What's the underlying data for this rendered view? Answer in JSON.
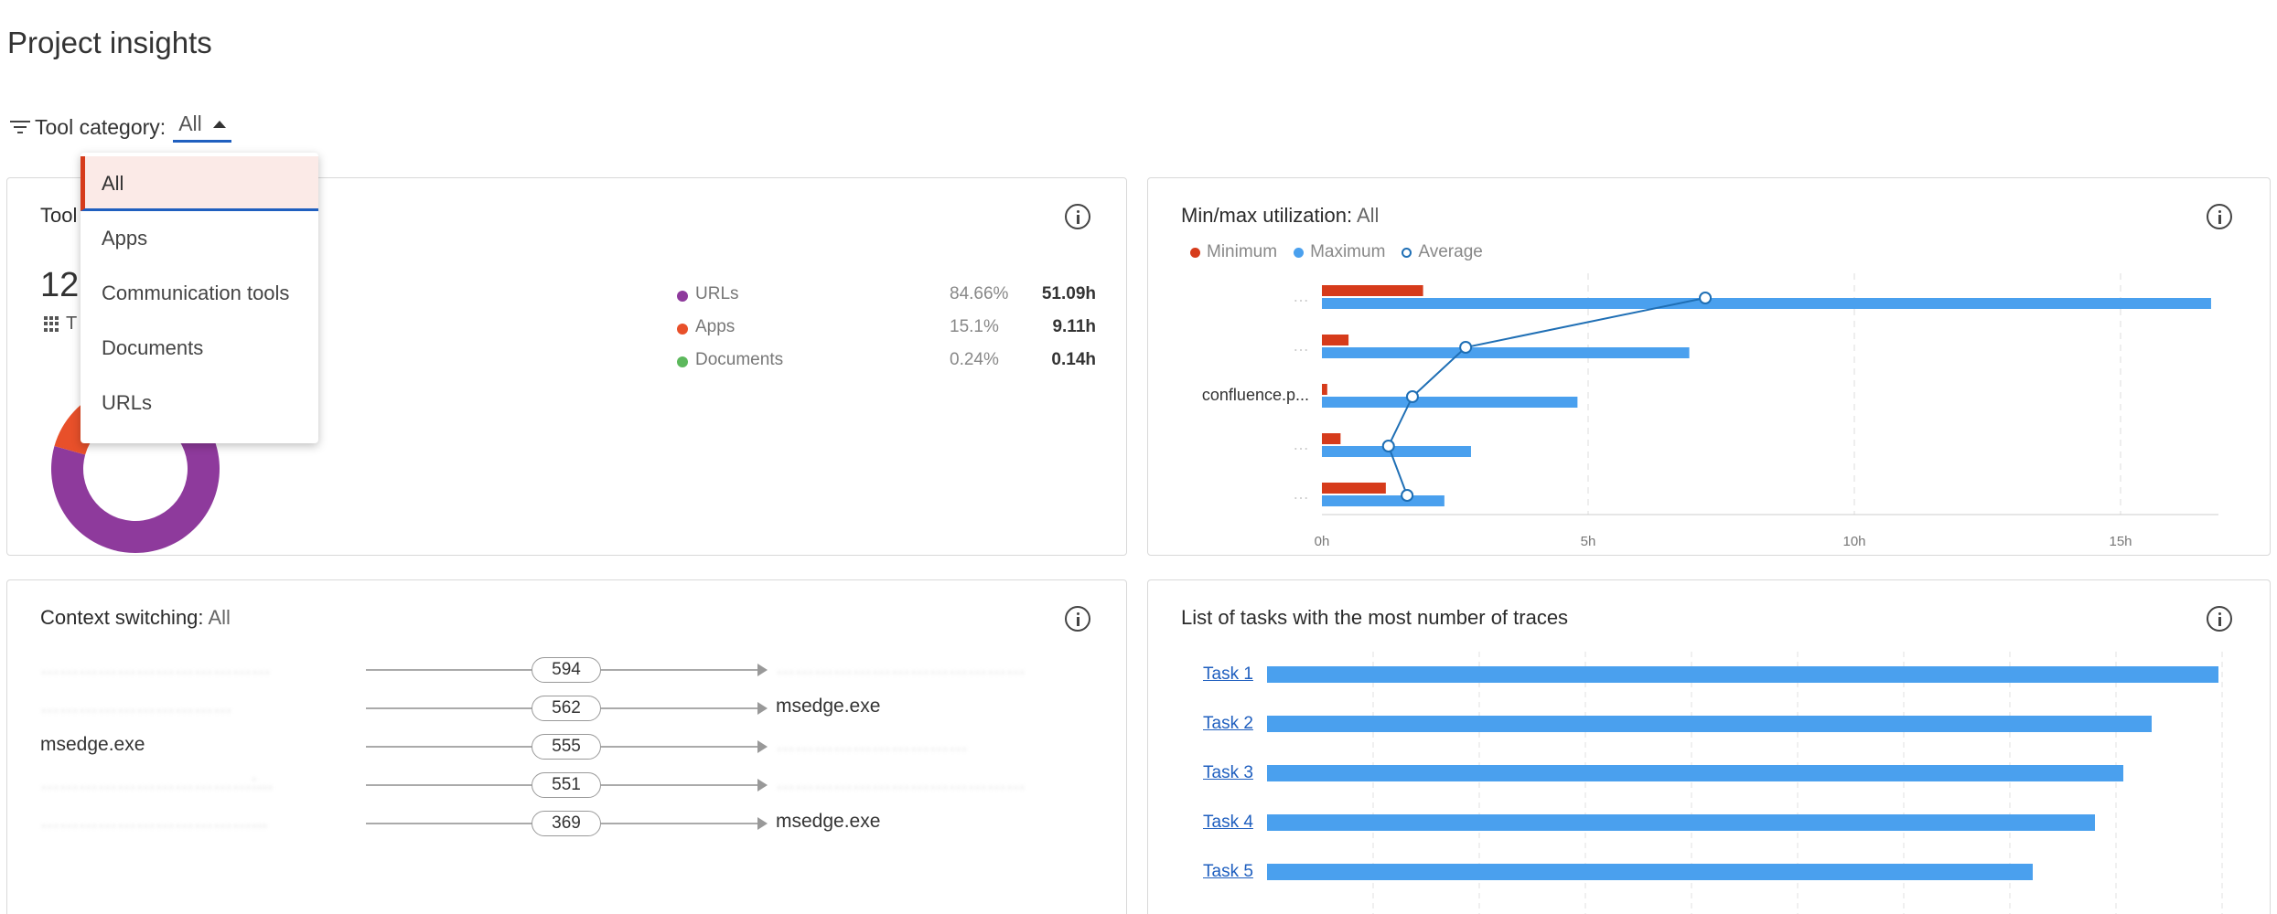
{
  "page": {
    "title": "Project insights"
  },
  "filter": {
    "label": "Tool category:",
    "value": "All"
  },
  "dropdown": {
    "options": [
      "All",
      "Apps",
      "Communication tools",
      "Documents",
      "URLs"
    ],
    "selected": "All"
  },
  "tools_card": {
    "title_partial": "Tool",
    "big_number_partial": "12",
    "grid_label_partial": "T",
    "legend": [
      {
        "label": "URLs",
        "percent": "84.66%",
        "hours": "51.09h",
        "color": "#8e3a9c"
      },
      {
        "label": "Apps",
        "percent": "15.1%",
        "hours": "9.11h",
        "color": "#e8502a"
      },
      {
        "label": "Documents",
        "percent": "0.24%",
        "hours": "0.14h",
        "color": "#5cb85c"
      }
    ]
  },
  "minmax_card": {
    "title": "Min/max utilization:",
    "title_value": "All",
    "legend": {
      "minimum": "Minimum",
      "maximum": "Maximum",
      "average": "Average"
    },
    "colors": {
      "minimum": "#d63b1b",
      "maximum": "#4aa0ee",
      "average": "#1f6fb5"
    }
  },
  "context_card": {
    "title": "Context switching:",
    "title_value": "All",
    "rows": [
      {
        "source": "………………………………",
        "source_hidden": true,
        "count": "594",
        "target": "…………………………………",
        "target_hidden": true
      },
      {
        "source": "…………………………",
        "source_hidden": true,
        "count": "562",
        "target": "msedge.exe",
        "target_hidden": false
      },
      {
        "source": "msedge.exe",
        "source_hidden": false,
        "count": "555",
        "target": "…………………………",
        "target_hidden": true
      },
      {
        "source": "……………………………:...",
        "source_hidden": true,
        "count": "551",
        "target": "…………………………………",
        "target_hidden": true
      },
      {
        "source": "……………………………...",
        "source_hidden": true,
        "count": "369",
        "target": "msedge.exe",
        "target_hidden": false
      }
    ]
  },
  "tasks_card": {
    "title": "List of tasks with the most number of traces",
    "tasks": [
      {
        "label": "Task 1",
        "value": 1.0
      },
      {
        "label": "Task 2",
        "value": 0.93
      },
      {
        "label": "Task 3",
        "value": 0.9
      },
      {
        "label": "Task 4",
        "value": 0.87
      },
      {
        "label": "Task 5",
        "value": 0.805
      }
    ]
  },
  "chart_data": [
    {
      "type": "bar",
      "orientation": "horizontal",
      "categories": [
        "",
        "",
        "confluence.p...",
        "",
        ""
      ],
      "series": [
        {
          "name": "Minimum",
          "values": [
            1.9,
            0.5,
            0.1,
            0.35,
            1.2
          ]
        },
        {
          "name": "Maximum",
          "values": [
            16.7,
            6.9,
            4.8,
            2.8,
            2.3
          ]
        },
        {
          "name": "Average",
          "values": [
            7.2,
            2.7,
            1.7,
            1.25,
            1.6
          ]
        }
      ],
      "xticks": [
        "0h",
        "5h",
        "10h",
        "15h"
      ],
      "xlim": [
        0,
        17.5
      ],
      "grid": true,
      "legend": "top-left"
    },
    {
      "type": "donut",
      "categories": [
        "URLs",
        "Apps",
        "Documents"
      ],
      "values": [
        84.66,
        15.1,
        0.24
      ]
    }
  ]
}
